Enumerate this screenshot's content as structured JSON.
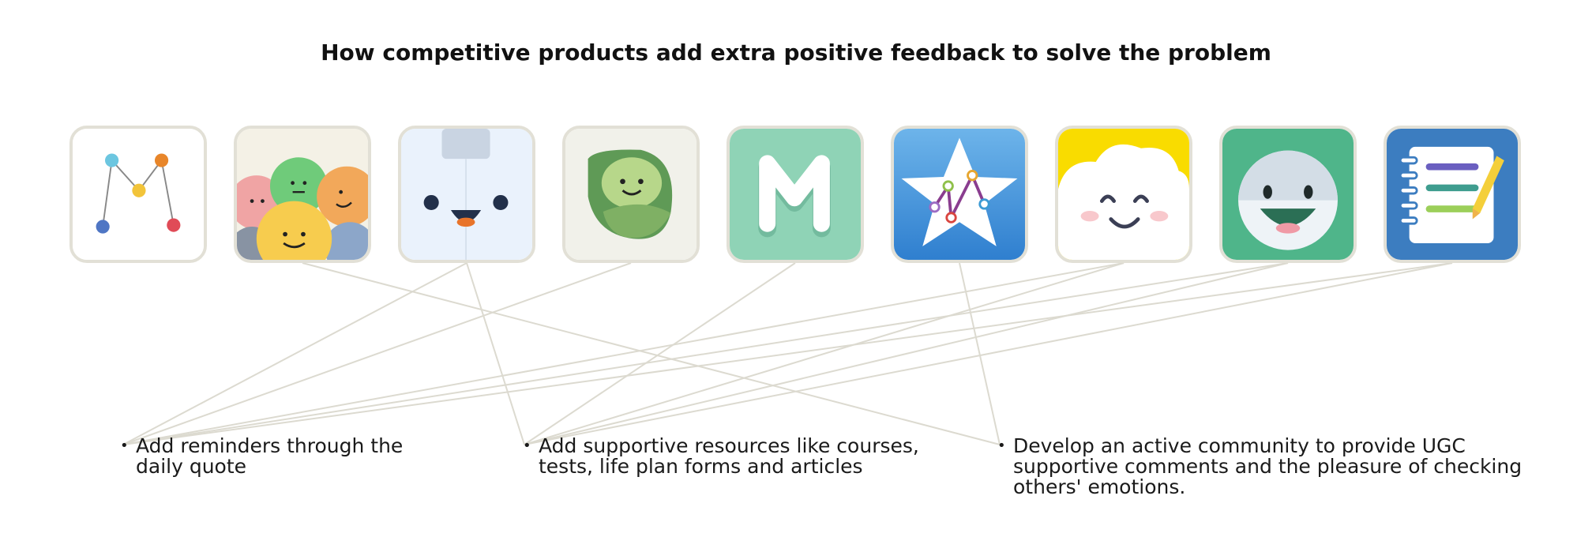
{
  "title": "How competitive products add extra positive feedback to solve the problem",
  "apps": [
    {
      "icon": "line-chart-m-icon"
    },
    {
      "icon": "emotion-faces-icon"
    },
    {
      "icon": "smiling-robot-icon"
    },
    {
      "icon": "leaf-face-icon"
    },
    {
      "icon": "white-m-icon"
    },
    {
      "icon": "star-graph-icon"
    },
    {
      "icon": "happy-cloud-icon"
    },
    {
      "icon": "smiling-face-icon"
    },
    {
      "icon": "notebook-pen-icon"
    }
  ],
  "points": [
    {
      "line1": "Add reminders through the",
      "line2": "daily quote",
      "line3": ""
    },
    {
      "line1": "Add supportive resources like courses,",
      "line2": "tests, life plan forms and articles",
      "line3": ""
    },
    {
      "line1": "Develop an active community to provide UGC",
      "line2": "supportive comments and the pleasure of checking",
      "line3": "others' emotions."
    }
  ],
  "links": [
    {
      "app": 1,
      "point": 2
    },
    {
      "app": 2,
      "point": 0
    },
    {
      "app": 2,
      "point": 1
    },
    {
      "app": 3,
      "point": 0
    },
    {
      "app": 4,
      "point": 1
    },
    {
      "app": 5,
      "point": 2
    },
    {
      "app": 6,
      "point": 0
    },
    {
      "app": 6,
      "point": 1
    },
    {
      "app": 7,
      "point": 0
    },
    {
      "app": 7,
      "point": 1
    },
    {
      "app": 8,
      "point": 0
    },
    {
      "app": 8,
      "point": 1
    }
  ],
  "colors": {
    "link": "#dcdad0",
    "icon_border": "#e2e0d6"
  }
}
